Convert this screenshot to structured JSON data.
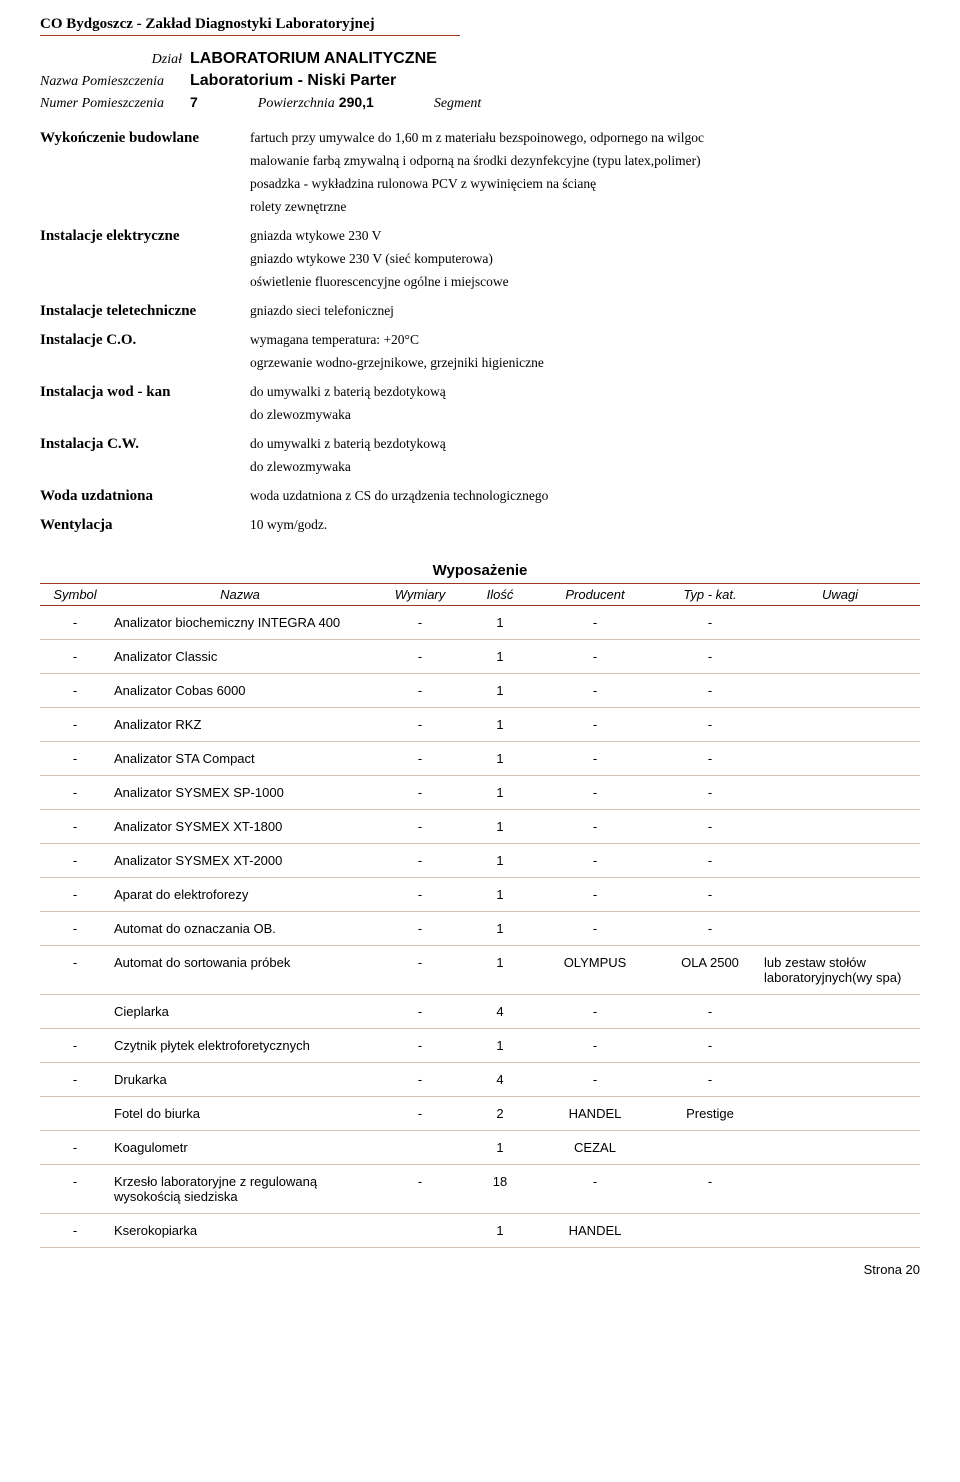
{
  "page": {
    "org_title": "CO Bydgoszcz - Zakład Diagnostyki Laboratoryjnej",
    "footer": "Strona 20"
  },
  "header": {
    "dzial_label": "Dział",
    "dzial_value": "LABORATORIUM ANALITYCZNE",
    "nazwa_label": "Nazwa Pomieszczenia",
    "nazwa_value": "Laboratorium  -  Niski Parter",
    "numer_label": "Numer Pomieszczenia",
    "numer_value": "7",
    "pow_label": "Powierzchnia",
    "pow_value": "290,1",
    "segment_label": "Segment",
    "segment_value": ""
  },
  "details": [
    {
      "label": "Wykończenie budowlane",
      "lines": [
        "fartuch przy umywalce do 1,60 m z materiału bezspoinowego, odpornego na wilgoc",
        "malowanie farbą zmywalną i odporną na środki dezynfekcyjne (typu latex,polimer)",
        "posadzka - wykładzina rulonowa PCV z wywinięciem na ścianę",
        "rolety zewnętrzne"
      ]
    },
    {
      "label": "Instalacje elektryczne",
      "lines": [
        "gniazda wtykowe 230 V",
        "gniazdo wtykowe 230 V (sieć komputerowa)",
        "oświetlenie fluorescencyjne ogólne i miejscowe"
      ]
    },
    {
      "label": "Instalacje teletechniczne",
      "lines": [
        "gniazdo sieci telefonicznej"
      ]
    },
    {
      "label": "Instalacje C.O.",
      "lines": [
        "wymagana temperatura: +20°C",
        "ogrzewanie wodno-grzejnikowe, grzejniki higieniczne"
      ]
    },
    {
      "label": "Instalacja wod - kan",
      "lines": [
        "do umywalki z baterią bezdotykową",
        "do zlewozmywaka"
      ]
    },
    {
      "label": "Instalacja C.W.",
      "lines": [
        "do umywalki z baterią bezdotykową",
        "do zlewozmywaka"
      ]
    },
    {
      "label": "Woda uzdatniona",
      "lines": [
        "woda uzdatniona z CS do urządzenia technologicznego"
      ]
    },
    {
      "label": "Wentylacja",
      "lines": [
        "10 wym/godz."
      ]
    }
  ],
  "equipment": {
    "title": "Wyposażenie",
    "columns": {
      "symbol": "Symbol",
      "nazwa": "Nazwa",
      "wymiary": "Wymiary",
      "ilosc": "Ilość",
      "producent": "Producent",
      "typ": "Typ - kat.",
      "uwagi": "Uwagi"
    },
    "rows": [
      {
        "symbol": "-",
        "nazwa": "Analizator biochemiczny INTEGRA 400",
        "wymiary": "-",
        "ilosc": "1",
        "producent": "-",
        "typ": "-",
        "uwagi": ""
      },
      {
        "symbol": "-",
        "nazwa": "Analizator Classic",
        "wymiary": "-",
        "ilosc": "1",
        "producent": "-",
        "typ": "-",
        "uwagi": ""
      },
      {
        "symbol": "-",
        "nazwa": "Analizator Cobas 6000",
        "wymiary": "-",
        "ilosc": "1",
        "producent": "-",
        "typ": "-",
        "uwagi": ""
      },
      {
        "symbol": "-",
        "nazwa": "Analizator RKZ",
        "wymiary": "-",
        "ilosc": "1",
        "producent": "-",
        "typ": "-",
        "uwagi": ""
      },
      {
        "symbol": "-",
        "nazwa": "Analizator STA Compact",
        "wymiary": "-",
        "ilosc": "1",
        "producent": "-",
        "typ": "-",
        "uwagi": ""
      },
      {
        "symbol": "-",
        "nazwa": "Analizator SYSMEX SP-1000",
        "wymiary": "-",
        "ilosc": "1",
        "producent": "-",
        "typ": "-",
        "uwagi": ""
      },
      {
        "symbol": "-",
        "nazwa": "Analizator SYSMEX XT-1800",
        "wymiary": "-",
        "ilosc": "1",
        "producent": "-",
        "typ": "-",
        "uwagi": ""
      },
      {
        "symbol": "-",
        "nazwa": "Analizator SYSMEX XT-2000",
        "wymiary": "-",
        "ilosc": "1",
        "producent": "-",
        "typ": "-",
        "uwagi": ""
      },
      {
        "symbol": "-",
        "nazwa": "Aparat do elektroforezy",
        "wymiary": "-",
        "ilosc": "1",
        "producent": "-",
        "typ": "-",
        "uwagi": ""
      },
      {
        "symbol": "-",
        "nazwa": "Automat do oznaczania OB.",
        "wymiary": "-",
        "ilosc": "1",
        "producent": "-",
        "typ": "-",
        "uwagi": ""
      },
      {
        "symbol": "-",
        "nazwa": "Automat do sortowania próbek",
        "wymiary": "-",
        "ilosc": "1",
        "producent": "OLYMPUS",
        "typ": "OLA 2500",
        "uwagi": "lub zestaw stołów laboratoryjnych(wy spa)"
      },
      {
        "symbol": "",
        "nazwa": "Cieplarka",
        "wymiary": "-",
        "ilosc": "4",
        "producent": "-",
        "typ": "-",
        "uwagi": ""
      },
      {
        "symbol": "-",
        "nazwa": "Czytnik płytek elektroforetycznych",
        "wymiary": "-",
        "ilosc": "1",
        "producent": "-",
        "typ": "-",
        "uwagi": ""
      },
      {
        "symbol": "-",
        "nazwa": "Drukarka",
        "wymiary": "-",
        "ilosc": "4",
        "producent": "-",
        "typ": "-",
        "uwagi": ""
      },
      {
        "symbol": "",
        "nazwa": "Fotel do biurka",
        "wymiary": "-",
        "ilosc": "2",
        "producent": "HANDEL",
        "typ": "Prestige",
        "uwagi": ""
      },
      {
        "symbol": "-",
        "nazwa": "Koagulometr",
        "wymiary": "",
        "ilosc": "1",
        "producent": "CEZAL",
        "typ": "",
        "uwagi": ""
      },
      {
        "symbol": "-",
        "nazwa": "Krzesło laboratoryjne z regulowaną wysokością siedziska",
        "wymiary": "-",
        "ilosc": "18",
        "producent": "-",
        "typ": "-",
        "uwagi": ""
      },
      {
        "symbol": "-",
        "nazwa": "Kserokopiarka",
        "wymiary": "",
        "ilosc": "1",
        "producent": "HANDEL",
        "typ": "",
        "uwagi": ""
      }
    ]
  },
  "style": {
    "rule_color": "#9a3a1a",
    "row_border_color": "#d7bfb3",
    "body_font": "Times New Roman",
    "table_font": "Arial",
    "base_fontsize": 14,
    "header_strong_fontsize": 16
  }
}
